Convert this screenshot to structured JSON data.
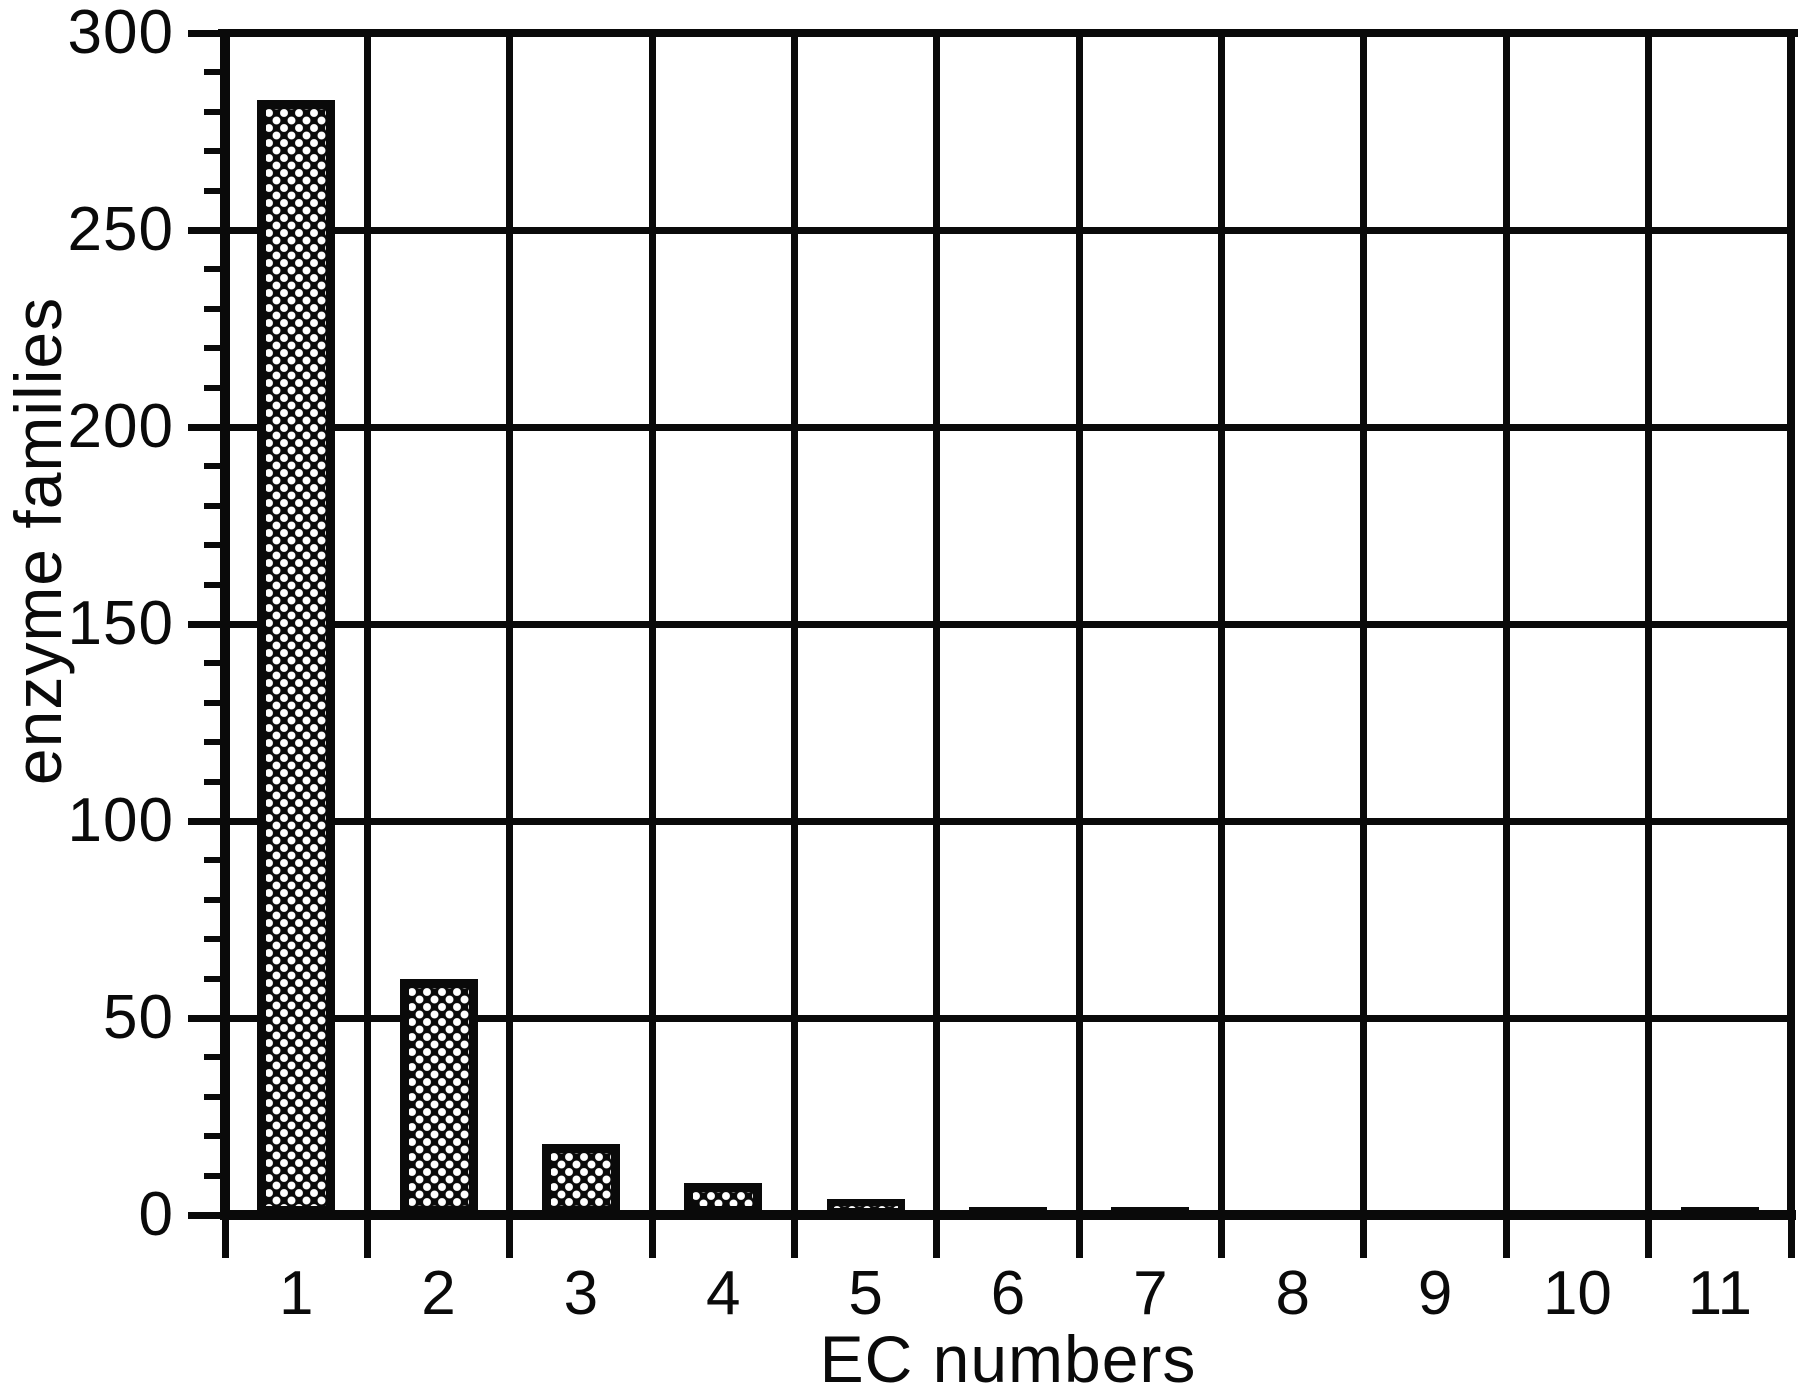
{
  "figure": {
    "background": "#ffffff",
    "ink": "#0a0a0a",
    "bar_fill_description": "black bars with white polka-dot halftone pattern"
  },
  "chart_data": {
    "type": "bar",
    "title": "",
    "xlabel": "EC numbers",
    "ylabel": "enzyme families",
    "categories": [
      "1",
      "2",
      "3",
      "4",
      "5",
      "6",
      "7",
      "8",
      "9",
      "10",
      "11"
    ],
    "values": [
      283,
      60,
      18,
      8,
      4,
      2,
      2,
      0,
      0,
      0,
      2
    ],
    "ylim": [
      0,
      300
    ],
    "y_major_ticks": [
      0,
      50,
      100,
      150,
      200,
      250,
      300
    ],
    "y_major_tick_labels": [
      "0",
      "50",
      "100",
      "150",
      "200",
      "250",
      "300"
    ],
    "y_minor_tick_step": 10,
    "grid": "full frame; horizontal gridlines at each 50 units; vertical gridlines at every category boundary; tick marks outside axes",
    "legend": "none"
  }
}
